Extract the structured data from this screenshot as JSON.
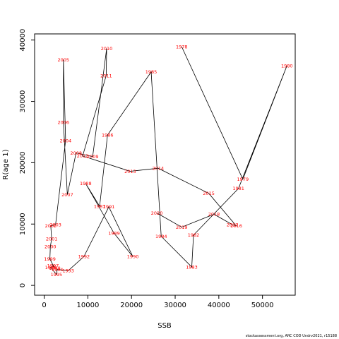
{
  "chart_data": {
    "type": "line",
    "xlabel": "SSB",
    "ylabel": "R(age 1)",
    "xlim": [
      -2200,
      57500
    ],
    "ylim": [
      -1600,
      41000
    ],
    "x_ticks": [
      0,
      10000,
      20000,
      30000,
      40000,
      50000
    ],
    "y_ticks": [
      0,
      10000,
      20000,
      30000,
      40000
    ],
    "tick_labels_x": [
      "0",
      "10000",
      "20000",
      "30000",
      "40000",
      "50000"
    ],
    "tick_labels_y": [
      "0",
      "10000",
      "20000",
      "30000",
      "40000"
    ],
    "series": [
      {
        "type": "connected-scatter",
        "points": [
          {
            "year": "1978",
            "ssb": 31500,
            "r": 38900
          },
          {
            "year": "1979",
            "ssb": 45500,
            "r": 17300
          },
          {
            "year": "1980",
            "ssb": 55600,
            "r": 35800
          },
          {
            "year": "1981",
            "ssb": 44500,
            "r": 15800
          },
          {
            "year": "1982",
            "ssb": 34200,
            "r": 8200
          },
          {
            "year": "1983",
            "ssb": 33800,
            "r": 3000
          },
          {
            "year": "1984",
            "ssb": 26800,
            "r": 8000
          },
          {
            "year": "1985",
            "ssb": 24500,
            "r": 34800
          },
          {
            "year": "1986",
            "ssb": 14500,
            "r": 24500
          },
          {
            "year": "1987",
            "ssb": 12700,
            "r": 12900
          },
          {
            "year": "1988",
            "ssb": 9500,
            "r": 16600
          },
          {
            "year": "1989",
            "ssb": 16000,
            "r": 8500
          },
          {
            "year": "1990",
            "ssb": 20300,
            "r": 4700
          },
          {
            "year": "1991",
            "ssb": 14800,
            "r": 12800
          },
          {
            "year": "1992",
            "ssb": 9100,
            "r": 4700
          },
          {
            "year": "1993",
            "ssb": 5500,
            "r": 2400
          },
          {
            "year": "1994",
            "ssb": 3000,
            "r": 2600
          },
          {
            "year": "1995",
            "ssb": 2800,
            "r": 1800
          },
          {
            "year": "1996",
            "ssb": 1500,
            "r": 2900
          },
          {
            "year": "1997",
            "ssb": 2000,
            "r": 3200
          },
          {
            "year": "1998",
            "ssb": 2400,
            "r": 2800
          },
          {
            "year": "1999",
            "ssb": 1300,
            "r": 4300
          },
          {
            "year": "2000",
            "ssb": 1400,
            "r": 6300
          },
          {
            "year": "2001",
            "ssb": 1700,
            "r": 7600
          },
          {
            "year": "2002",
            "ssb": 1500,
            "r": 9700
          },
          {
            "year": "2003",
            "ssb": 2600,
            "r": 9900
          },
          {
            "year": "2004",
            "ssb": 4900,
            "r": 23600
          },
          {
            "year": "2005",
            "ssb": 4400,
            "r": 36800
          },
          {
            "year": "2006",
            "ssb": 4400,
            "r": 26600
          },
          {
            "year": "2007",
            "ssb": 5300,
            "r": 14800
          },
          {
            "year": "2008",
            "ssb": 7300,
            "r": 21600
          },
          {
            "year": "2009",
            "ssb": 11100,
            "r": 21000
          },
          {
            "year": "2010",
            "ssb": 14300,
            "r": 38600
          },
          {
            "year": "2011",
            "ssb": 14200,
            "r": 34200
          },
          {
            "year": "2012",
            "ssb": 8800,
            "r": 21100
          },
          {
            "year": "2013",
            "ssb": 19700,
            "r": 18600
          },
          {
            "year": "2014",
            "ssb": 26100,
            "r": 19100
          },
          {
            "year": "2015",
            "ssb": 37700,
            "r": 15000
          },
          {
            "year": "2016",
            "ssb": 44000,
            "r": 9700
          },
          {
            "year": "2017",
            "ssb": 43100,
            "r": 9900
          },
          {
            "year": "2018",
            "ssb": 38900,
            "r": 11600
          },
          {
            "year": "2019",
            "ssb": 31500,
            "r": 9500
          },
          {
            "year": "2020",
            "ssb": 25800,
            "r": 11800
          }
        ]
      }
    ]
  },
  "footer": {
    "credit": "stockassessment.org, ARC COD Undrv2021, r15188"
  },
  "colors": {
    "line": "#000000",
    "labels": "#ff0000",
    "axis": "#000000"
  }
}
